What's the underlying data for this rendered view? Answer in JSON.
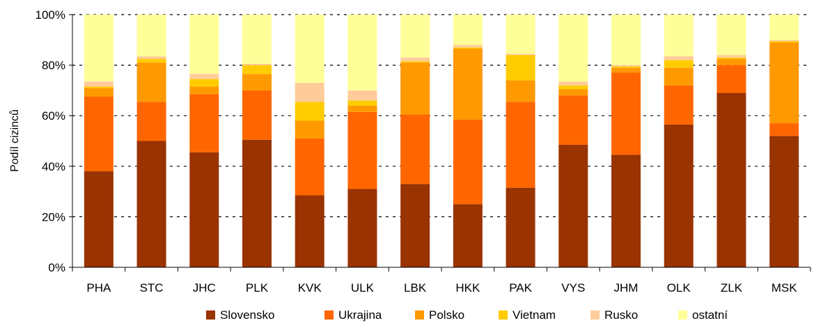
{
  "chart_data": {
    "type": "bar",
    "stacked": true,
    "percent": true,
    "ylabel": "Podíl cizinců",
    "xlabel": "",
    "ylim": [
      0,
      100
    ],
    "yticks": [
      "0%",
      "20%",
      "40%",
      "60%",
      "80%",
      "100%"
    ],
    "grid": "dashed horizontal",
    "legend_position": "bottom",
    "categories": [
      "PHA",
      "STC",
      "JHC",
      "PLK",
      "KVK",
      "ULK",
      "LBK",
      "HKK",
      "PAK",
      "VYS",
      "JHM",
      "OLK",
      "ZLK",
      "MSK"
    ],
    "series": [
      {
        "name": "Slovensko",
        "color": "#993300",
        "values": [
          38,
          50,
          45.5,
          50.5,
          28.5,
          31,
          33,
          25,
          31.5,
          48.5,
          44.5,
          56.5,
          69,
          52
        ]
      },
      {
        "name": "Ukrajina",
        "color": "#FF6600",
        "values": [
          29.5,
          15.5,
          23,
          19.5,
          22.5,
          30.5,
          27.5,
          33.5,
          34,
          19.5,
          32.5,
          15.5,
          11,
          5
        ]
      },
      {
        "name": "Polsko",
        "color": "#FF9900",
        "values": [
          3.5,
          15.5,
          3,
          6.5,
          7,
          2.5,
          20.5,
          28,
          8.5,
          2.5,
          2,
          7,
          2.5,
          32
        ]
      },
      {
        "name": "Vietnam",
        "color": "#FFCC00",
        "values": [
          0.5,
          1.5,
          3,
          3.5,
          7.5,
          2,
          0.5,
          0.5,
          10,
          1.5,
          0.5,
          3,
          0.5,
          0.5
        ]
      },
      {
        "name": "Rusko",
        "color": "#FFCC99",
        "values": [
          2,
          1,
          2,
          0.5,
          7.5,
          4,
          1.5,
          1,
          0.5,
          1.5,
          0.5,
          1.5,
          1,
          0.5
        ]
      },
      {
        "name": "ostatní",
        "color": "#FFFF99",
        "values": [
          26.5,
          16.5,
          23.5,
          19.5,
          27,
          30,
          17,
          12,
          15.5,
          26.5,
          20,
          16.5,
          16,
          10
        ]
      }
    ]
  }
}
